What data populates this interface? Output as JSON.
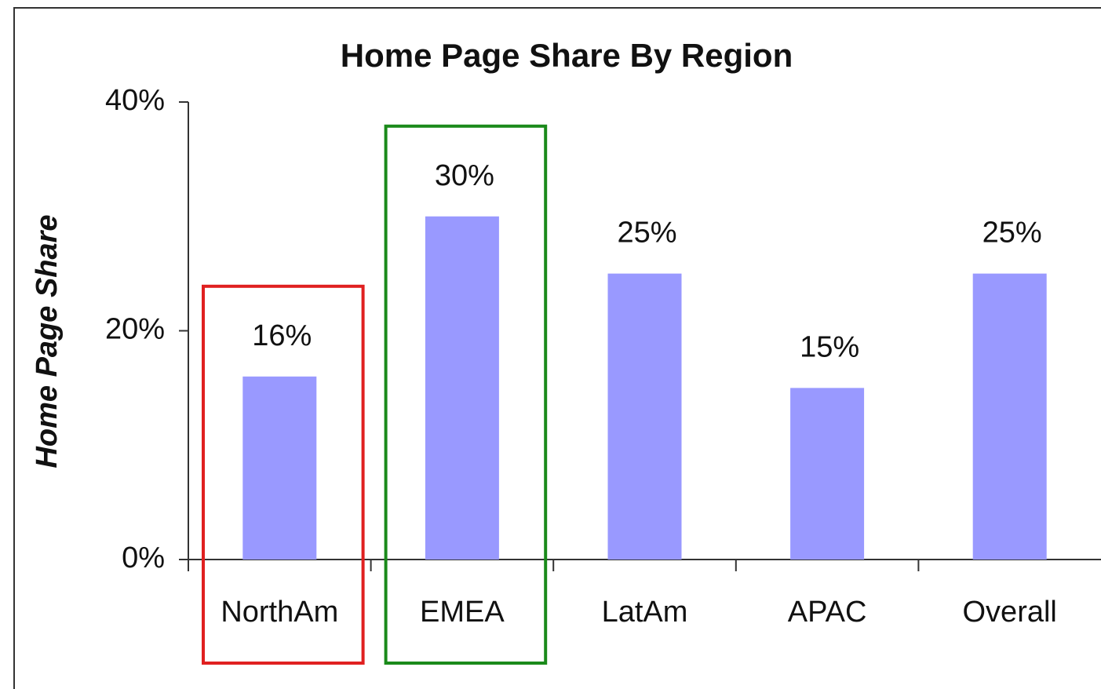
{
  "chart_data": {
    "type": "bar",
    "title": "Home Page Share By Region",
    "y_label": "Home Page Share",
    "categories": [
      "NorthAm",
      "EMEA",
      "LatAm",
      "APAC",
      "Overall"
    ],
    "values": [
      16,
      30,
      25,
      15,
      25
    ],
    "value_labels": [
      "16%",
      "30%",
      "25%",
      "15%",
      "25%"
    ],
    "color": "#9999ff",
    "ylim": [
      0,
      40
    ],
    "yticks": [
      {
        "value": 0,
        "label": "0%"
      },
      {
        "value": 20,
        "label": "20%"
      },
      {
        "value": 40,
        "label": "40%"
      }
    ],
    "grid": false,
    "highlights": [
      {
        "category": "NorthAm",
        "color": "#e02020"
      },
      {
        "category": "EMEA",
        "color": "#1a8a1a"
      }
    ]
  }
}
